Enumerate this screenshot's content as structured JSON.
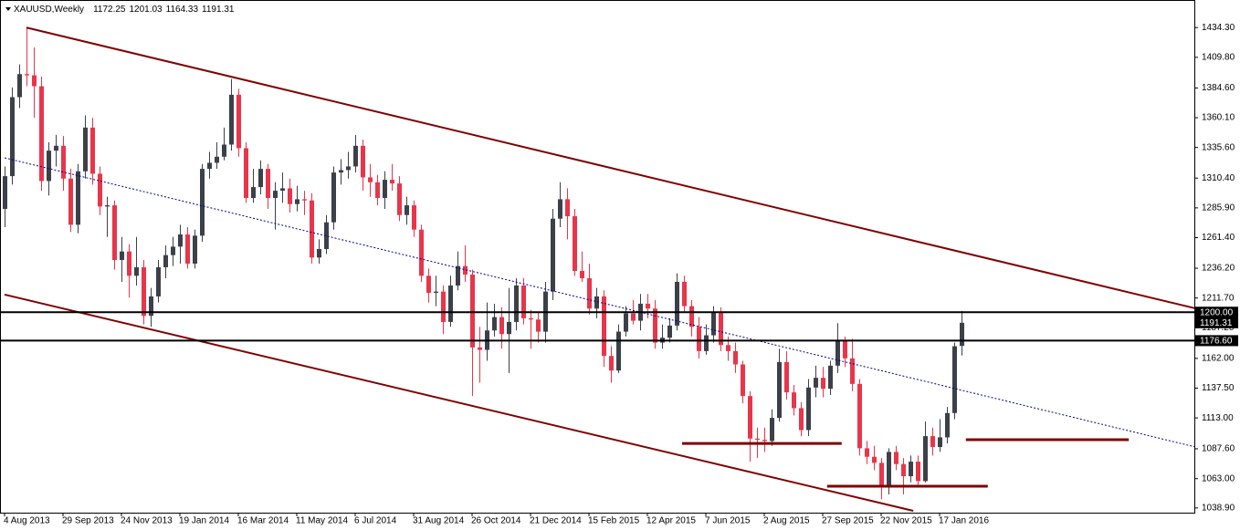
{
  "chart_data": {
    "type": "candlestick",
    "title": "XAUUSD,Weekly",
    "categories": [
      "4 Aug 2013",
      null,
      null,
      null,
      null,
      null,
      null,
      null,
      "29 Sep 2013",
      null,
      null,
      null,
      null,
      null,
      null,
      null,
      "24 Nov 2013",
      null,
      null,
      null,
      null,
      null,
      null,
      null,
      "19 Jan 2014",
      null,
      null,
      null,
      null,
      null,
      null,
      null,
      "16 Mar 2014",
      null,
      null,
      null,
      null,
      null,
      null,
      null,
      "11 May 2014",
      null,
      null,
      null,
      null,
      null,
      null,
      null,
      "6 Jul 2014",
      null,
      null,
      null,
      null,
      null,
      null,
      null,
      "31 Aug 2014",
      null,
      null,
      null,
      null,
      null,
      null,
      null,
      "26 Oct 2014",
      null,
      null,
      null,
      null,
      null,
      null,
      null,
      "21 Dec 2014",
      null,
      null,
      null,
      null,
      null,
      null,
      null,
      "15 Feb 2015",
      null,
      null,
      null,
      null,
      null,
      null,
      null,
      "12 Apr 2015",
      null,
      null,
      null,
      null,
      null,
      null,
      null,
      "7 Jun 2015",
      null,
      null,
      null,
      null,
      null,
      null,
      null,
      "2 Aug 2015",
      null,
      null,
      null,
      null,
      null,
      null,
      null,
      "27 Sep 2015",
      null,
      null,
      null,
      null,
      null,
      null,
      null,
      "22 Nov 2015",
      null,
      null,
      null,
      null,
      null,
      null,
      null,
      "17 Jan 2016",
      null,
      null,
      null
    ],
    "open": [
      1285,
      1312,
      1377,
      1396,
      1395,
      1386,
      1308,
      1333,
      1337,
      1310,
      1272,
      1316,
      1352,
      1314,
      1287,
      1288,
      1243,
      1250,
      1230,
      1237,
      1197,
      1213,
      1237,
      1247,
      1254,
      1264,
      1240,
      1263,
      1318,
      1323,
      1328,
      1338,
      1379,
      1335,
      1294,
      1303,
      1318,
      1294,
      1300,
      1302,
      1289,
      1293,
      1292,
      1245,
      1252,
      1274,
      1315,
      1317,
      1320,
      1337,
      1311,
      1307,
      1294,
      1309,
      1306,
      1280,
      1288,
      1268,
      1230,
      1216,
      1217,
      1192,
      1222,
      1238,
      1231,
      1171,
      1169,
      1185,
      1196,
      1182,
      1192,
      1222,
      1195,
      1194,
      1184,
      1217,
      1277,
      1293,
      1279,
      1234,
      1228,
      1203,
      1213,
      1164,
      1152,
      1184,
      1199,
      1193,
      1207,
      1203,
      1175,
      1179,
      1189,
      1225,
      1205,
      1188,
      1168,
      1181,
      1200,
      1173,
      1168,
      1157,
      1131,
      1096,
      1095,
      1094,
      1113,
      1159,
      1134,
      1121,
      1103,
      1138,
      1146,
      1137,
      1156,
      1177,
      1162,
      1141,
      1088,
      1081,
      1076,
      1056,
      1085,
      1075,
      1065,
      1077,
      1061,
      1098,
      1089,
      1097,
      1117,
      1172.25
    ],
    "high": [
      1320,
      1385,
      1404,
      1434,
      1418,
      1394,
      1340,
      1346,
      1345,
      1318,
      1322,
      1362,
      1360,
      1320,
      1295,
      1292,
      1262,
      1256,
      1262,
      1243,
      1220,
      1243,
      1255,
      1262,
      1272,
      1270,
      1268,
      1322,
      1332,
      1340,
      1352,
      1392,
      1384,
      1340,
      1318,
      1325,
      1322,
      1307,
      1315,
      1310,
      1304,
      1300,
      1298,
      1260,
      1280,
      1320,
      1326,
      1332,
      1346,
      1342,
      1322,
      1313,
      1316,
      1322,
      1312,
      1295,
      1292,
      1272,
      1236,
      1230,
      1222,
      1230,
      1250,
      1255,
      1235,
      1188,
      1208,
      1207,
      1204,
      1220,
      1228,
      1228,
      1202,
      1200,
      1225,
      1285,
      1307,
      1302,
      1285,
      1250,
      1240,
      1220,
      1218,
      1172,
      1190,
      1205,
      1210,
      1215,
      1215,
      1210,
      1190,
      1195,
      1232,
      1230,
      1210,
      1196,
      1190,
      1205,
      1204,
      1180,
      1175,
      1160,
      1135,
      1105,
      1105,
      1120,
      1170,
      1168,
      1140,
      1126,
      1145,
      1156,
      1155,
      1160,
      1191,
      1180,
      1178,
      1145,
      1094,
      1090,
      1080,
      1088,
      1090,
      1080,
      1082,
      1082,
      1110,
      1105,
      1112,
      1122,
      1175,
      1201.03
    ],
    "low": [
      1270,
      1305,
      1368,
      1386,
      1360,
      1300,
      1296,
      1320,
      1300,
      1266,
      1265,
      1310,
      1305,
      1280,
      1262,
      1235,
      1225,
      1212,
      1222,
      1190,
      1188,
      1208,
      1228,
      1238,
      1240,
      1236,
      1236,
      1258,
      1310,
      1318,
      1325,
      1333,
      1328,
      1290,
      1290,
      1297,
      1285,
      1268,
      1290,
      1282,
      1283,
      1280,
      1240,
      1240,
      1248,
      1268,
      1305,
      1310,
      1315,
      1300,
      1295,
      1288,
      1285,
      1300,
      1275,
      1272,
      1262,
      1225,
      1208,
      1205,
      1182,
      1188,
      1218,
      1225,
      1131,
      1142,
      1160,
      1180,
      1170,
      1150,
      1185,
      1190,
      1170,
      1175,
      1175,
      1210,
      1270,
      1260,
      1230,
      1225,
      1198,
      1195,
      1155,
      1142,
      1150,
      1180,
      1190,
      1185,
      1195,
      1170,
      1170,
      1175,
      1185,
      1200,
      1180,
      1162,
      1165,
      1175,
      1168,
      1160,
      1150,
      1125,
      1077,
      1080,
      1085,
      1090,
      1110,
      1128,
      1115,
      1098,
      1098,
      1130,
      1130,
      1132,
      1150,
      1155,
      1135,
      1082,
      1075,
      1070,
      1046,
      1050,
      1070,
      1050,
      1060,
      1058,
      1060,
      1082,
      1085,
      1092,
      1112,
      1164.33
    ],
    "close": [
      1312,
      1377,
      1396,
      1395,
      1386,
      1308,
      1333,
      1337,
      1310,
      1272,
      1316,
      1352,
      1314,
      1287,
      1288,
      1243,
      1250,
      1230,
      1237,
      1197,
      1213,
      1237,
      1247,
      1254,
      1264,
      1240,
      1263,
      1318,
      1323,
      1328,
      1338,
      1379,
      1335,
      1294,
      1303,
      1318,
      1294,
      1300,
      1302,
      1289,
      1293,
      1292,
      1245,
      1252,
      1274,
      1315,
      1317,
      1320,
      1337,
      1311,
      1307,
      1294,
      1309,
      1306,
      1280,
      1288,
      1268,
      1230,
      1216,
      1217,
      1192,
      1222,
      1238,
      1231,
      1171,
      1169,
      1185,
      1196,
      1182,
      1192,
      1222,
      1195,
      1194,
      1184,
      1217,
      1277,
      1293,
      1279,
      1234,
      1228,
      1203,
      1213,
      1164,
      1152,
      1184,
      1199,
      1193,
      1207,
      1203,
      1175,
      1179,
      1189,
      1225,
      1205,
      1188,
      1168,
      1181,
      1200,
      1173,
      1168,
      1157,
      1131,
      1096,
      1095,
      1094,
      1113,
      1159,
      1134,
      1121,
      1103,
      1138,
      1146,
      1137,
      1156,
      1177,
      1162,
      1141,
      1088,
      1081,
      1076,
      1056,
      1085,
      1075,
      1065,
      1077,
      1061,
      1098,
      1089,
      1097,
      1117,
      1172,
      1191.31
    ],
    "up_color": "#3c4049",
    "down_color": "#e8354a",
    "ylim": [
      1035,
      1457
    ],
    "yticks": [
      {
        "value": 1038.9,
        "label": "1038.90"
      },
      {
        "value": 1063,
        "label": "1063.00"
      },
      {
        "value": 1087.6,
        "label": "1087.60"
      },
      {
        "value": 1113,
        "label": "1113.00"
      },
      {
        "value": 1137.5,
        "label": "1137.50"
      },
      {
        "value": 1162,
        "label": "1162.00"
      },
      {
        "value": 1187.2,
        "label": "1187.20"
      },
      {
        "value": 1211.7,
        "label": "1211.70"
      },
      {
        "value": 1236.2,
        "label": "1236.20"
      },
      {
        "value": 1261.4,
        "label": "1261.40"
      },
      {
        "value": 1285.9,
        "label": "1285.90"
      },
      {
        "value": 1310.4,
        "label": "1310.40"
      },
      {
        "value": 1335.6,
        "label": "1335.60"
      },
      {
        "value": 1360.1,
        "label": "1360.10"
      },
      {
        "value": 1384.6,
        "label": "1384.60"
      },
      {
        "value": 1409.8,
        "label": "1409.80"
      },
      {
        "value": 1434.3,
        "label": "1434.30"
      }
    ],
    "hlines": [
      {
        "value": 1200,
        "label": "1200.00"
      },
      {
        "value": 1176.6,
        "label": "1176.60"
      }
    ],
    "trendlines": [
      {
        "from": [
          3,
          1434.3
        ],
        "to": [
          163,
          1203.2
        ],
        "color": "#800000",
        "style": "solid"
      },
      {
        "from": [
          0,
          1214.5
        ],
        "to": [
          124.4,
          1036.5
        ],
        "color": "#800000",
        "style": "solid"
      },
      {
        "from": [
          0,
          1327.1
        ],
        "to": [
          163,
          1089.1
        ],
        "color": "#00008b",
        "style": "dotted"
      },
      {
        "from": [
          92.75,
          1092
        ],
        "to": [
          114.6,
          1092
        ],
        "color": "#800000",
        "style": "bold"
      },
      {
        "from": [
          112.6,
          1056.8
        ],
        "to": [
          134.6,
          1056.8
        ],
        "color": "#800000",
        "style": "bold"
      },
      {
        "from": [
          131.6,
          1095.1
        ],
        "to": [
          153.9,
          1095.1
        ],
        "color": "#800000",
        "style": "bold"
      }
    ],
    "grid": false
  }
}
